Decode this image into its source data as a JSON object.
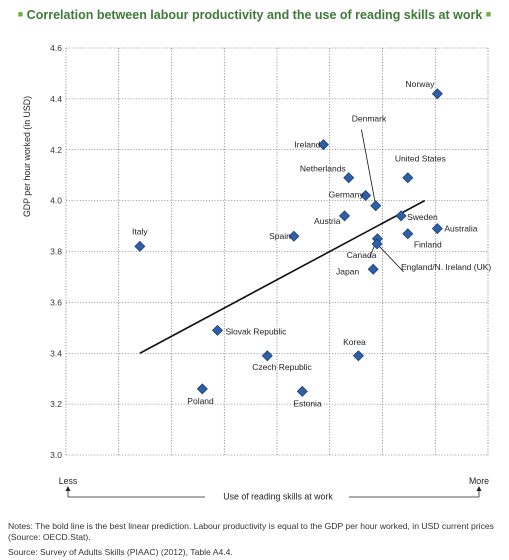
{
  "title": "Correlation between labour productivity and the use of reading skills at work",
  "title_marker": "■",
  "notes": "Notes: The bold line is the best linear prediction. Labour productivity is equal to the GDP per hour worked, in USD current prices (Source: OECD.Stat).",
  "source": "Source: Survey of Adults Skills (PIAAC) (2012), Table A4.4.",
  "colors": {
    "title": "#3f7a3a",
    "marker_fill": "#2e5fa8",
    "marker_stroke": "#163a70",
    "trend": "#111111"
  },
  "chart_data": {
    "type": "scatter",
    "ylabel": "GDP per hour worked (in USD)",
    "xlabel": "Use of reading skills at work",
    "x_low_label": "Less",
    "x_high_label": "More",
    "ylim": [
      3.0,
      4.6
    ],
    "yticks": [
      "3.0",
      "3.2",
      "3.4",
      "3.6",
      "3.8",
      "4.0",
      "4.2",
      "4.4",
      "4.6"
    ],
    "xlim": [
      0,
      1
    ],
    "grid": true,
    "points": [
      {
        "label": "Norway",
        "x": 0.88,
        "y": 4.42
      },
      {
        "label": "Ireland",
        "x": 0.61,
        "y": 4.22
      },
      {
        "label": "Denmark",
        "x": 0.734,
        "y": 3.98
      },
      {
        "label": "Netherlands",
        "x": 0.67,
        "y": 4.09
      },
      {
        "label": "United States",
        "x": 0.81,
        "y": 4.09
      },
      {
        "label": "Germany",
        "x": 0.71,
        "y": 4.02
      },
      {
        "label": "Austria",
        "x": 0.66,
        "y": 3.94
      },
      {
        "label": "Sweden",
        "x": 0.794,
        "y": 3.94
      },
      {
        "label": "Australia",
        "x": 0.88,
        "y": 3.89
      },
      {
        "label": "Finland",
        "x": 0.81,
        "y": 3.87
      },
      {
        "label": "Spain",
        "x": 0.54,
        "y": 3.86
      },
      {
        "label": "Canada",
        "x": 0.738,
        "y": 3.85
      },
      {
        "label": "England/N. Ireland (UK)",
        "x": 0.737,
        "y": 3.83
      },
      {
        "label": "Japan",
        "x": 0.728,
        "y": 3.73
      },
      {
        "label": "Italy",
        "x": 0.175,
        "y": 3.82
      },
      {
        "label": "Slovak Republic",
        "x": 0.359,
        "y": 3.49
      },
      {
        "label": "Czech Republic",
        "x": 0.477,
        "y": 3.39
      },
      {
        "label": "Korea",
        "x": 0.693,
        "y": 3.39
      },
      {
        "label": "Poland",
        "x": 0.323,
        "y": 3.26
      },
      {
        "label": "Estonia",
        "x": 0.56,
        "y": 3.25
      }
    ],
    "trendline": {
      "x": [
        0.175,
        0.85
      ],
      "y": [
        3.4,
        4.0
      ]
    }
  }
}
